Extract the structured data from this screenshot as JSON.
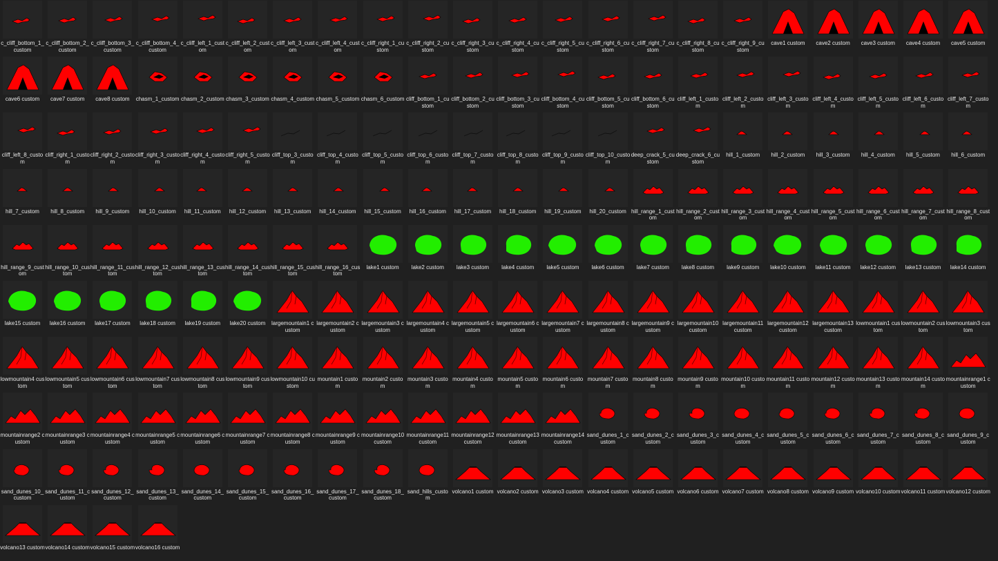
{
  "colors": {
    "background": "#202020",
    "relief": "#ff0000",
    "water": "#22ee00",
    "outline": "#000000"
  },
  "files": [
    {
      "name": "c_cliff_bottom_1_custom",
      "icon": "cliff-thumbnail-icon"
    },
    {
      "name": "c_cliff_bottom_2_custom",
      "icon": "cliff-thumbnail-icon"
    },
    {
      "name": "c_cliff_bottom_3_custom",
      "icon": "cliff-thumbnail-icon"
    },
    {
      "name": "c_cliff_bottom_4_custom",
      "icon": "cliff-thumbnail-icon"
    },
    {
      "name": "c_cliff_left_1_custom",
      "icon": "cliff-thumbnail-icon"
    },
    {
      "name": "c_cliff_left_2_custom",
      "icon": "cliff-thumbnail-icon"
    },
    {
      "name": "c_cliff_left_3_custom",
      "icon": "cliff-thumbnail-icon"
    },
    {
      "name": "c_cliff_left_4_custom",
      "icon": "cliff-thumbnail-icon"
    },
    {
      "name": "c_cliff_right_1_custom",
      "icon": "cliff-thumbnail-icon"
    },
    {
      "name": "c_cliff_right_2_custom",
      "icon": "cliff-thumbnail-icon"
    },
    {
      "name": "c_cliff_right_3_custom",
      "icon": "cliff-thumbnail-icon"
    },
    {
      "name": "c_cliff_right_4_custom",
      "icon": "cliff-thumbnail-icon"
    },
    {
      "name": "c_cliff_right_5_custom",
      "icon": "cliff-thumbnail-icon"
    },
    {
      "name": "c_cliff_right_6_custom",
      "icon": "cliff-thumbnail-icon"
    },
    {
      "name": "c_cliff_right_7_custom",
      "icon": "cliff-thumbnail-icon"
    },
    {
      "name": "c_cliff_right_8_custom",
      "icon": "cliff-thumbnail-icon"
    },
    {
      "name": "c_cliff_right_9_custom",
      "icon": "cliff-thumbnail-icon"
    },
    {
      "name": "cave1 custom",
      "icon": "cave-thumbnail-icon"
    },
    {
      "name": "cave2 custom",
      "icon": "cave-thumbnail-icon"
    },
    {
      "name": "cave3 custom",
      "icon": "cave-thumbnail-icon"
    },
    {
      "name": "cave4 custom",
      "icon": "cave-thumbnail-icon"
    },
    {
      "name": "cave5 custom",
      "icon": "cave-thumbnail-icon"
    },
    {
      "name": "cave6 custom",
      "icon": "cave-thumbnail-icon"
    },
    {
      "name": "cave7 custom",
      "icon": "cave-thumbnail-icon"
    },
    {
      "name": "cave8 custom",
      "icon": "cave-thumbnail-icon"
    },
    {
      "name": "chasm_1_custom",
      "icon": "chasm-thumbnail-icon"
    },
    {
      "name": "chasm_2_custom",
      "icon": "chasm-thumbnail-icon"
    },
    {
      "name": "chasm_3_custom",
      "icon": "chasm-thumbnail-icon"
    },
    {
      "name": "chasm_4_custom",
      "icon": "chasm-thumbnail-icon"
    },
    {
      "name": "chasm_5_custom",
      "icon": "chasm-thumbnail-icon"
    },
    {
      "name": "chasm_6_custom",
      "icon": "chasm-thumbnail-icon"
    },
    {
      "name": "cliff_bottom_1_custom",
      "icon": "cliff-thumbnail-icon"
    },
    {
      "name": "cliff_bottom_2_custom",
      "icon": "cliff-thumbnail-icon"
    },
    {
      "name": "cliff_bottom_3_custom",
      "icon": "cliff-thumbnail-icon"
    },
    {
      "name": "cliff_bottom_4_custom",
      "icon": "cliff-thumbnail-icon"
    },
    {
      "name": "cliff_bottom_5_custom",
      "icon": "cliff-thumbnail-icon"
    },
    {
      "name": "cliff_bottom_6_custom",
      "icon": "cliff-thumbnail-icon"
    },
    {
      "name": "cliff_left_1_custom",
      "icon": "cliff-thumbnail-icon"
    },
    {
      "name": "cliff_left_2_custom",
      "icon": "cliff-thumbnail-icon"
    },
    {
      "name": "cliff_left_3_custom",
      "icon": "cliff-thumbnail-icon"
    },
    {
      "name": "cliff_left_4_custom",
      "icon": "cliff-thumbnail-icon"
    },
    {
      "name": "cliff_left_5_custom",
      "icon": "cliff-thumbnail-icon"
    },
    {
      "name": "cliff_left_6_custom",
      "icon": "cliff-thumbnail-icon"
    },
    {
      "name": "cliff_left_7_custom",
      "icon": "cliff-thumbnail-icon"
    },
    {
      "name": "cliff_left_8_custom",
      "icon": "cliff-thumbnail-icon"
    },
    {
      "name": "cliff_right_1_custom",
      "icon": "cliff-thumbnail-icon"
    },
    {
      "name": "cliff_right_2_custom",
      "icon": "cliff-thumbnail-icon"
    },
    {
      "name": "cliff_right_3_custom",
      "icon": "cliff-thumbnail-icon"
    },
    {
      "name": "cliff_right_4_custom",
      "icon": "cliff-thumbnail-icon"
    },
    {
      "name": "cliff_right_5_custom",
      "icon": "cliff-thumbnail-icon"
    },
    {
      "name": "cliff_top_3_custom",
      "icon": "crack-thumbnail-icon"
    },
    {
      "name": "cliff_top_4_custom",
      "icon": "crack-thumbnail-icon"
    },
    {
      "name": "cliff_top_5_custom",
      "icon": "crack-thumbnail-icon"
    },
    {
      "name": "cliff_top_6_custom",
      "icon": "crack-thumbnail-icon"
    },
    {
      "name": "cliff_top_7_custom",
      "icon": "crack-thumbnail-icon"
    },
    {
      "name": "cliff_top_8_custom",
      "icon": "crack-thumbnail-icon"
    },
    {
      "name": "cliff_top_9_custom",
      "icon": "crack-thumbnail-icon"
    },
    {
      "name": "cliff_top_10_custom",
      "icon": "crack-thumbnail-icon"
    },
    {
      "name": "deep_crack_5_custom",
      "icon": "cliff-thumbnail-icon"
    },
    {
      "name": "deep_crack_6_custom",
      "icon": "cliff-thumbnail-icon"
    },
    {
      "name": "hill_1_custom",
      "icon": "hill-thumbnail-icon"
    },
    {
      "name": "hill_2_custom",
      "icon": "hill-thumbnail-icon"
    },
    {
      "name": "hill_3_custom",
      "icon": "hill-thumbnail-icon"
    },
    {
      "name": "hill_4_custom",
      "icon": "hill-thumbnail-icon"
    },
    {
      "name": "hill_5_custom",
      "icon": "hill-thumbnail-icon"
    },
    {
      "name": "hill_6_custom",
      "icon": "hill-thumbnail-icon"
    },
    {
      "name": "hill_7_custom",
      "icon": "hill-thumbnail-icon"
    },
    {
      "name": "hill_8_custom",
      "icon": "hill-thumbnail-icon"
    },
    {
      "name": "hill_9_custom",
      "icon": "hill-thumbnail-icon"
    },
    {
      "name": "hill_10_custom",
      "icon": "hill-thumbnail-icon"
    },
    {
      "name": "hill_11_custom",
      "icon": "hill-thumbnail-icon"
    },
    {
      "name": "hill_12_custom",
      "icon": "hill-thumbnail-icon"
    },
    {
      "name": "hill_13_custom",
      "icon": "hill-thumbnail-icon"
    },
    {
      "name": "hill_14_custom",
      "icon": "hill-thumbnail-icon"
    },
    {
      "name": "hill_15_custom",
      "icon": "hill-thumbnail-icon"
    },
    {
      "name": "hill_16_custom",
      "icon": "hill-thumbnail-icon"
    },
    {
      "name": "hill_17_custom",
      "icon": "hill-thumbnail-icon"
    },
    {
      "name": "hill_18_custom",
      "icon": "hill-thumbnail-icon"
    },
    {
      "name": "hill_19_custom",
      "icon": "hill-thumbnail-icon"
    },
    {
      "name": "hill_20_custom",
      "icon": "hill-thumbnail-icon"
    },
    {
      "name": "hill_range_1_custom",
      "icon": "hill-range-thumbnail-icon"
    },
    {
      "name": "hill_range_2_custom",
      "icon": "hill-range-thumbnail-icon"
    },
    {
      "name": "hill_range_3_custom",
      "icon": "hill-range-thumbnail-icon"
    },
    {
      "name": "hill_range_4_custom",
      "icon": "hill-range-thumbnail-icon"
    },
    {
      "name": "hill_range_5_custom",
      "icon": "hill-range-thumbnail-icon"
    },
    {
      "name": "hill_range_6_custom",
      "icon": "hill-range-thumbnail-icon"
    },
    {
      "name": "hill_range_7_custom",
      "icon": "hill-range-thumbnail-icon"
    },
    {
      "name": "hill_range_8_custom",
      "icon": "hill-range-thumbnail-icon"
    },
    {
      "name": "hill_range_9_custom",
      "icon": "hill-range-thumbnail-icon"
    },
    {
      "name": "hill_range_10_custom",
      "icon": "hill-range-thumbnail-icon"
    },
    {
      "name": "hill_range_11_custom",
      "icon": "hill-range-thumbnail-icon"
    },
    {
      "name": "hill_range_12_custom",
      "icon": "hill-range-thumbnail-icon"
    },
    {
      "name": "hill_range_13_custom",
      "icon": "hill-range-thumbnail-icon"
    },
    {
      "name": "hill_range_14_custom",
      "icon": "hill-range-thumbnail-icon"
    },
    {
      "name": "hill_range_15_custom",
      "icon": "hill-range-thumbnail-icon"
    },
    {
      "name": "hill_range_16_custom",
      "icon": "hill-range-thumbnail-icon"
    },
    {
      "name": "lake1 custom",
      "icon": "lake-thumbnail-icon"
    },
    {
      "name": "lake2 custom",
      "icon": "lake-thumbnail-icon"
    },
    {
      "name": "lake3 custom",
      "icon": "lake-thumbnail-icon"
    },
    {
      "name": "lake4 custom",
      "icon": "lake-thumbnail-icon"
    },
    {
      "name": "lake5 custom",
      "icon": "lake-thumbnail-icon"
    },
    {
      "name": "lake6 custom",
      "icon": "lake-thumbnail-icon"
    },
    {
      "name": "lake7 custom",
      "icon": "lake-thumbnail-icon"
    },
    {
      "name": "lake8 custom",
      "icon": "lake-thumbnail-icon"
    },
    {
      "name": "lake9 custom",
      "icon": "lake-thumbnail-icon"
    },
    {
      "name": "lake10 custom",
      "icon": "lake-thumbnail-icon"
    },
    {
      "name": "lake11 custom",
      "icon": "lake-thumbnail-icon"
    },
    {
      "name": "lake12 custom",
      "icon": "lake-thumbnail-icon"
    },
    {
      "name": "lake13 custom",
      "icon": "lake-thumbnail-icon"
    },
    {
      "name": "lake14 custom",
      "icon": "lake-thumbnail-icon"
    },
    {
      "name": "lake15 custom",
      "icon": "lake-thumbnail-icon"
    },
    {
      "name": "lake16 custom",
      "icon": "lake-thumbnail-icon"
    },
    {
      "name": "lake17 custom",
      "icon": "lake-thumbnail-icon"
    },
    {
      "name": "lake18 custom",
      "icon": "lake-thumbnail-icon"
    },
    {
      "name": "lake19 custom",
      "icon": "lake-thumbnail-icon"
    },
    {
      "name": "lake20 custom",
      "icon": "lake-thumbnail-icon"
    },
    {
      "name": "largemountain1 custom",
      "icon": "mountain-thumbnail-icon"
    },
    {
      "name": "largemountain2 custom",
      "icon": "mountain-thumbnail-icon"
    },
    {
      "name": "largemountain3 custom",
      "icon": "mountain-thumbnail-icon"
    },
    {
      "name": "largemountain4 custom",
      "icon": "mountain-thumbnail-icon"
    },
    {
      "name": "largemountain5 custom",
      "icon": "mountain-thumbnail-icon"
    },
    {
      "name": "largemountain6 custom",
      "icon": "mountain-thumbnail-icon"
    },
    {
      "name": "largemountain7 custom",
      "icon": "mountain-thumbnail-icon"
    },
    {
      "name": "largemountain8 custom",
      "icon": "mountain-thumbnail-icon"
    },
    {
      "name": "largemountain9 custom",
      "icon": "mountain-thumbnail-icon"
    },
    {
      "name": "largemountain10 custom",
      "icon": "mountain-thumbnail-icon"
    },
    {
      "name": "largemountain11 custom",
      "icon": "mountain-thumbnail-icon"
    },
    {
      "name": "largemountain12 custom",
      "icon": "mountain-thumbnail-icon"
    },
    {
      "name": "largemountain13 custom",
      "icon": "mountain-thumbnail-icon"
    },
    {
      "name": "lowmountain1 custom",
      "icon": "mountain-thumbnail-icon"
    },
    {
      "name": "lowmountain2 custom",
      "icon": "mountain-thumbnail-icon"
    },
    {
      "name": "lowmountain3 custom",
      "icon": "mountain-thumbnail-icon"
    },
    {
      "name": "lowmountain4 custom",
      "icon": "mountain-thumbnail-icon"
    },
    {
      "name": "lowmountain5 custom",
      "icon": "mountain-thumbnail-icon"
    },
    {
      "name": "lowmountain6 custom",
      "icon": "mountain-thumbnail-icon"
    },
    {
      "name": "lowmountain7 custom",
      "icon": "mountain-thumbnail-icon"
    },
    {
      "name": "lowmountain8 custom",
      "icon": "mountain-thumbnail-icon"
    },
    {
      "name": "lowmountain9 custom",
      "icon": "mountain-thumbnail-icon"
    },
    {
      "name": "lowmountain10 custom",
      "icon": "mountain-thumbnail-icon"
    },
    {
      "name": "mountain1 custom",
      "icon": "mountain-thumbnail-icon"
    },
    {
      "name": "mountain2 custom",
      "icon": "mountain-thumbnail-icon"
    },
    {
      "name": "mountain3 custom",
      "icon": "mountain-thumbnail-icon"
    },
    {
      "name": "mountain4 custom",
      "icon": "mountain-thumbnail-icon"
    },
    {
      "name": "mountain5 custom",
      "icon": "mountain-thumbnail-icon"
    },
    {
      "name": "mountain6 custom",
      "icon": "mountain-thumbnail-icon"
    },
    {
      "name": "mountain7 custom",
      "icon": "mountain-thumbnail-icon"
    },
    {
      "name": "mountain8 custom",
      "icon": "mountain-thumbnail-icon"
    },
    {
      "name": "mountain9 custom",
      "icon": "mountain-thumbnail-icon"
    },
    {
      "name": "mountain10 custom",
      "icon": "mountain-thumbnail-icon"
    },
    {
      "name": "mountain11 custom",
      "icon": "mountain-thumbnail-icon"
    },
    {
      "name": "mountain12 custom",
      "icon": "mountain-thumbnail-icon"
    },
    {
      "name": "mountain13 custom",
      "icon": "mountain-thumbnail-icon"
    },
    {
      "name": "mountain14 custom",
      "icon": "mountain-thumbnail-icon"
    },
    {
      "name": "mountainrange1 custom",
      "icon": "mountain-range-thumbnail-icon"
    },
    {
      "name": "mountainrange2 custom",
      "icon": "mountain-range-thumbnail-icon"
    },
    {
      "name": "mountainrange3 custom",
      "icon": "mountain-range-thumbnail-icon"
    },
    {
      "name": "mountainrange4 custom",
      "icon": "mountain-range-thumbnail-icon"
    },
    {
      "name": "mountainrange5 custom",
      "icon": "mountain-range-thumbnail-icon"
    },
    {
      "name": "mountainrange6 custom",
      "icon": "mountain-range-thumbnail-icon"
    },
    {
      "name": "mountainrange7 custom",
      "icon": "mountain-range-thumbnail-icon"
    },
    {
      "name": "mountainrange8 custom",
      "icon": "mountain-range-thumbnail-icon"
    },
    {
      "name": "mountainrange9 custom",
      "icon": "mountain-range-thumbnail-icon"
    },
    {
      "name": "mountainrange10 custom",
      "icon": "mountain-range-thumbnail-icon"
    },
    {
      "name": "mountainrange11 custom",
      "icon": "mountain-range-thumbnail-icon"
    },
    {
      "name": "mountainrange12 custom",
      "icon": "mountain-range-thumbnail-icon"
    },
    {
      "name": "mountainrange13 custom",
      "icon": "mountain-range-thumbnail-icon"
    },
    {
      "name": "mountainrange14 custom",
      "icon": "mountain-range-thumbnail-icon"
    },
    {
      "name": "sand_dunes_1_custom",
      "icon": "sand-dunes-thumbnail-icon"
    },
    {
      "name": "sand_dunes_2_custom",
      "icon": "sand-dunes-thumbnail-icon"
    },
    {
      "name": "sand_dunes_3_custom",
      "icon": "sand-dunes-thumbnail-icon"
    },
    {
      "name": "sand_dunes_4_custom",
      "icon": "sand-dunes-thumbnail-icon"
    },
    {
      "name": "sand_dunes_5_custom",
      "icon": "sand-dunes-thumbnail-icon"
    },
    {
      "name": "sand_dunes_6_custom",
      "icon": "sand-dunes-thumbnail-icon"
    },
    {
      "name": "sand_dunes_7_custom",
      "icon": "sand-dunes-thumbnail-icon"
    },
    {
      "name": "sand_dunes_8_custom",
      "icon": "sand-dunes-thumbnail-icon"
    },
    {
      "name": "sand_dunes_9_custom",
      "icon": "sand-dunes-thumbnail-icon"
    },
    {
      "name": "sand_dunes_10_custom",
      "icon": "sand-dunes-thumbnail-icon"
    },
    {
      "name": "sand_dunes_11_custom",
      "icon": "sand-dunes-thumbnail-icon"
    },
    {
      "name": "sand_dunes_12_custom",
      "icon": "sand-dunes-thumbnail-icon"
    },
    {
      "name": "sand_dunes_13_custom",
      "icon": "sand-dunes-thumbnail-icon"
    },
    {
      "name": "sand_dunes_14_custom",
      "icon": "sand-dunes-thumbnail-icon"
    },
    {
      "name": "sand_dunes_15_custom",
      "icon": "sand-dunes-thumbnail-icon"
    },
    {
      "name": "sand_dunes_16_custom",
      "icon": "sand-dunes-thumbnail-icon"
    },
    {
      "name": "sand_dunes_17_custom",
      "icon": "sand-dunes-thumbnail-icon"
    },
    {
      "name": "sand_dunes_18_custom",
      "icon": "sand-dunes-thumbnail-icon"
    },
    {
      "name": "sand_hills_custom",
      "icon": "sand-dunes-thumbnail-icon"
    },
    {
      "name": "volcano1 custom",
      "icon": "volcano-thumbnail-icon"
    },
    {
      "name": "volcano2 custom",
      "icon": "volcano-thumbnail-icon"
    },
    {
      "name": "volcano3 custom",
      "icon": "volcano-thumbnail-icon"
    },
    {
      "name": "volcano4 custom",
      "icon": "volcano-thumbnail-icon"
    },
    {
      "name": "volcano5 custom",
      "icon": "volcano-thumbnail-icon"
    },
    {
      "name": "volcano6 custom",
      "icon": "volcano-thumbnail-icon"
    },
    {
      "name": "volcano7 custom",
      "icon": "volcano-thumbnail-icon"
    },
    {
      "name": "volcano8 custom",
      "icon": "volcano-thumbnail-icon"
    },
    {
      "name": "volcano9 custom",
      "icon": "volcano-thumbnail-icon"
    },
    {
      "name": "volcano10 custom",
      "icon": "volcano-thumbnail-icon"
    },
    {
      "name": "volcano11 custom",
      "icon": "volcano-thumbnail-icon"
    },
    {
      "name": "volcano12 custom",
      "icon": "volcano-thumbnail-icon"
    },
    {
      "name": "volcano13 custom",
      "icon": "volcano-thumbnail-icon"
    },
    {
      "name": "volcano14 custom",
      "icon": "volcano-thumbnail-icon"
    },
    {
      "name": "volcano15 custom",
      "icon": "volcano-thumbnail-icon"
    },
    {
      "name": "volcano16 custom",
      "icon": "volcano-thumbnail-icon"
    }
  ]
}
